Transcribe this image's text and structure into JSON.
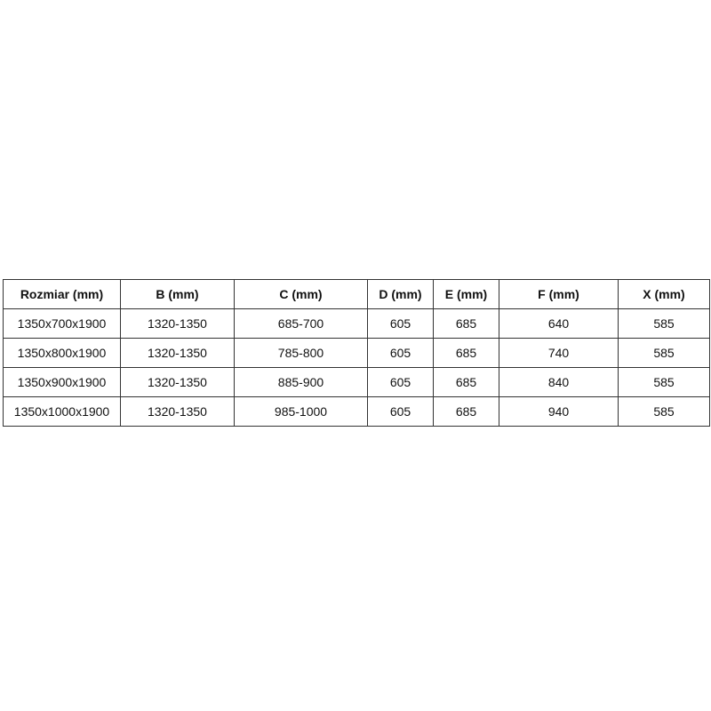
{
  "table": {
    "headers": [
      "Rozmiar (mm)",
      "B (mm)",
      "C (mm)",
      "D (mm)",
      "E (mm)",
      "F (mm)",
      "X (mm)"
    ],
    "rows": [
      [
        "1350x700x1900",
        "1320-1350",
        "685-700",
        "605",
        "685",
        "640",
        "585"
      ],
      [
        "1350x800x1900",
        "1320-1350",
        "785-800",
        "605",
        "685",
        "740",
        "585"
      ],
      [
        "1350x900x1900",
        "1320-1350",
        "885-900",
        "605",
        "685",
        "840",
        "585"
      ],
      [
        "1350x1000x1900",
        "1320-1350",
        "985-1000",
        "605",
        "685",
        "940",
        "585"
      ]
    ]
  }
}
